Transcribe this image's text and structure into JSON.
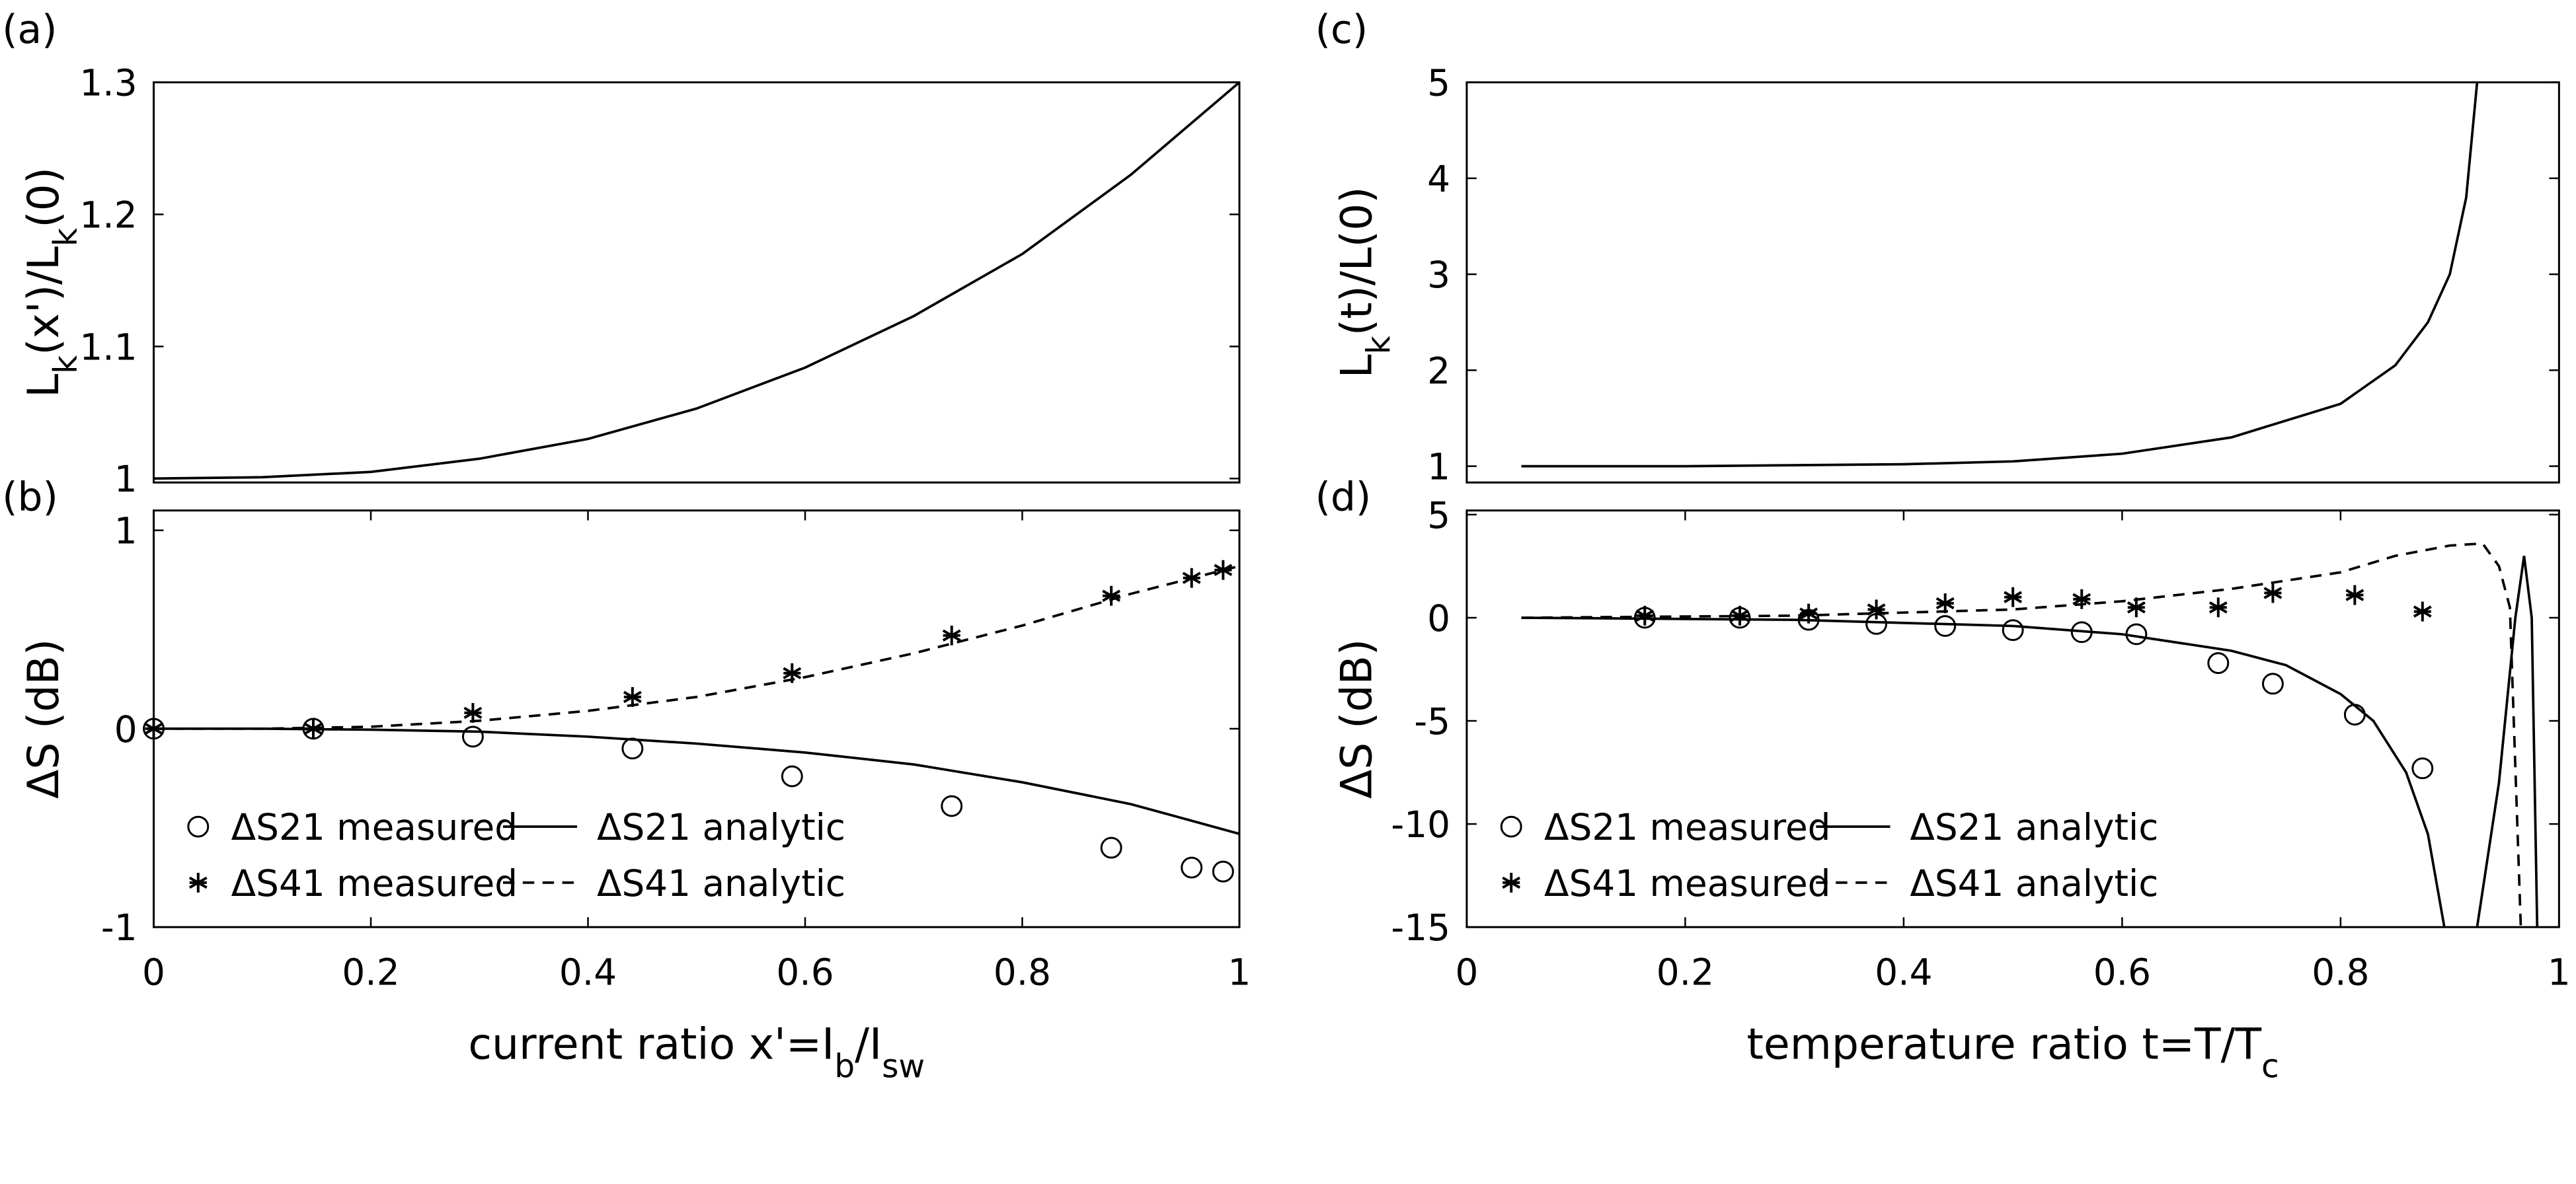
{
  "chart_data": [
    {
      "type": "line",
      "panel_label": "(a)",
      "y_label": [
        "L",
        {
          "sub": "k"
        },
        "(x')/L",
        {
          "sub": "k"
        },
        "(0)"
      ],
      "xlim": [
        0,
        1
      ],
      "ylim": [
        0.997,
        1.3
      ],
      "yticks": [
        1,
        1.1,
        1.2,
        1.3
      ],
      "series": [
        {
          "color": "#000000",
          "linestyle": "solid",
          "x": [
            0,
            0.1,
            0.2,
            0.3,
            0.4,
            0.5,
            0.6,
            0.7,
            0.8,
            0.9,
            1
          ],
          "values": [
            1,
            1.001,
            1.005,
            1.015,
            1.03,
            1.053,
            1.084,
            1.123,
            1.17,
            1.23,
            1.3
          ]
        }
      ]
    },
    {
      "type": "scatter",
      "panel_label": "(b)",
      "y_label": [
        "ΔS (dB)"
      ],
      "x_label": [
        "current ratio x'=I",
        {
          "sub": "b"
        },
        "/I",
        {
          "sub": "sw"
        }
      ],
      "xlim": [
        0,
        1
      ],
      "ylim": [
        -1,
        1.1
      ],
      "xticks": [
        0,
        0.2,
        0.4,
        0.6,
        0.8,
        1
      ],
      "yticks": [
        -1,
        0,
        1
      ],
      "legend": "lower left",
      "series": [
        {
          "name": "ΔS21 measured",
          "color": "#000000",
          "marker": "circle",
          "x": [
            0,
            0.147,
            0.294,
            0.441,
            0.588,
            0.735,
            0.882,
            0.956,
            0.985
          ],
          "values": [
            0,
            0,
            -0.04,
            -0.1,
            -0.24,
            -0.39,
            -0.6,
            -0.7,
            -0.72
          ]
        },
        {
          "name": "ΔS41 measured",
          "color": "#000000",
          "marker": "asterisk",
          "x": [
            0,
            0.147,
            0.294,
            0.441,
            0.588,
            0.735,
            0.882,
            0.956,
            0.985
          ],
          "values": [
            0,
            0,
            0.08,
            0.16,
            0.28,
            0.47,
            0.67,
            0.76,
            0.8
          ]
        },
        {
          "name": "ΔS21 analytic",
          "color": "#000000",
          "linestyle": "solid",
          "x": [
            0,
            0.1,
            0.2,
            0.3,
            0.4,
            0.5,
            0.6,
            0.7,
            0.8,
            0.9,
            1
          ],
          "values": [
            0,
            0,
            -0.005,
            -0.015,
            -0.04,
            -0.075,
            -0.12,
            -0.18,
            -0.27,
            -0.38,
            -0.53
          ]
        },
        {
          "name": "ΔS41 analytic",
          "color": "#000000",
          "linestyle": "dashed",
          "x": [
            0,
            0.1,
            0.2,
            0.3,
            0.4,
            0.5,
            0.6,
            0.7,
            0.8,
            0.9,
            1
          ],
          "values": [
            0,
            0,
            0.01,
            0.04,
            0.09,
            0.16,
            0.26,
            0.38,
            0.52,
            0.68,
            0.82
          ]
        }
      ]
    },
    {
      "type": "line",
      "panel_label": "(c)",
      "y_label": [
        "L",
        {
          "sub": "k"
        },
        "(t)/L(0)"
      ],
      "xlim": [
        0,
        1
      ],
      "ylim": [
        0.83,
        5
      ],
      "yticks": [
        1,
        2,
        3,
        4,
        5
      ],
      "series": [
        {
          "color": "#000000",
          "linestyle": "solid",
          "x": [
            0.05,
            0.2,
            0.4,
            0.5,
            0.6,
            0.7,
            0.8,
            0.85,
            0.88,
            0.9,
            0.915,
            0.925
          ],
          "values": [
            1,
            1,
            1.02,
            1.05,
            1.13,
            1.3,
            1.65,
            2.05,
            2.5,
            3.0,
            3.8,
            5
          ]
        }
      ]
    },
    {
      "type": "scatter",
      "panel_label": "(d)",
      "y_label": [
        "ΔS (dB)"
      ],
      "x_label": [
        "temperature ratio t=T/T",
        {
          "sub": "c"
        }
      ],
      "xlim": [
        0,
        1
      ],
      "ylim": [
        -15,
        5.2
      ],
      "xticks": [
        0,
        0.2,
        0.4,
        0.6,
        0.8,
        1
      ],
      "yticks": [
        -15,
        -10,
        -5,
        0,
        5
      ],
      "legend": "lower left",
      "series": [
        {
          "name": "ΔS21 measured",
          "color": "#000000",
          "marker": "circle",
          "x": [
            0.163,
            0.25,
            0.313,
            0.375,
            0.438,
            0.5,
            0.563,
            0.613,
            0.688,
            0.738,
            0.813,
            0.875
          ],
          "values": [
            0,
            0,
            -0.1,
            -0.3,
            -0.4,
            -0.6,
            -0.7,
            -0.8,
            -2.2,
            -3.2,
            -4.7,
            -7.3
          ]
        },
        {
          "name": "ΔS41 measured",
          "color": "#000000",
          "marker": "asterisk",
          "x": [
            0.163,
            0.25,
            0.313,
            0.375,
            0.438,
            0.5,
            0.563,
            0.613,
            0.688,
            0.738,
            0.813,
            0.875
          ],
          "values": [
            0.1,
            0.1,
            0.2,
            0.4,
            0.7,
            1.0,
            0.9,
            0.5,
            0.5,
            1.2,
            1.1,
            0.3
          ]
        },
        {
          "name": "ΔS21 analytic",
          "color": "#000000",
          "linestyle": "solid",
          "x": [
            0.05,
            0.3,
            0.5,
            0.6,
            0.7,
            0.75,
            0.8,
            0.83,
            0.86,
            0.88,
            0.895,
            0.9,
            0.925,
            0.945,
            0.96,
            0.968,
            0.975,
            0.98
          ],
          "values": [
            0,
            -0.1,
            -0.4,
            -0.8,
            -1.6,
            -2.3,
            -3.7,
            -5,
            -7.5,
            -10.5,
            -15,
            null,
            -15,
            -8,
            0,
            3,
            0,
            -15
          ]
        },
        {
          "name": "ΔS41 analytic",
          "color": "#000000",
          "linestyle": "dashed",
          "x": [
            0.05,
            0.3,
            0.5,
            0.6,
            0.7,
            0.8,
            0.85,
            0.9,
            0.93,
            0.945,
            0.955,
            0.965
          ],
          "values": [
            0,
            0.1,
            0.4,
            0.8,
            1.4,
            2.2,
            3,
            3.5,
            3.6,
            2.5,
            0.5,
            -15
          ]
        }
      ]
    }
  ]
}
